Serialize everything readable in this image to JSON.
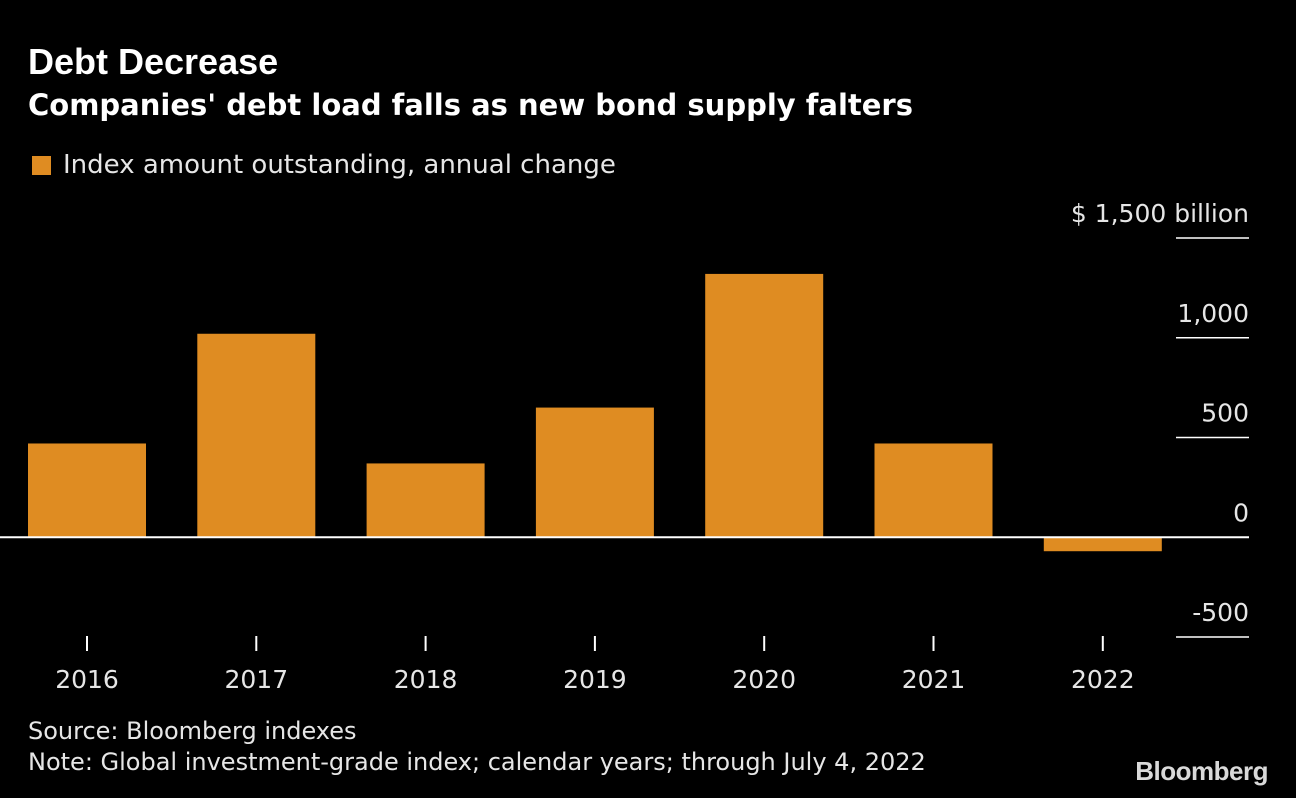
{
  "title": "Debt Decrease",
  "subtitle": "Companies' debt load falls as new bond supply falters",
  "footer": {
    "source": "Source: Bloomberg indexes",
    "note": "Note: Global investment-grade index; calendar years; through July 4, 2022"
  },
  "brand": "Bloomberg",
  "colors": {
    "background": "#000000",
    "bar": "#df8c22",
    "axis": "#ffffff",
    "text": "#e6e6e6"
  },
  "chart_data": {
    "type": "bar",
    "categories": [
      "2016",
      "2017",
      "2018",
      "2019",
      "2020",
      "2021",
      "2022"
    ],
    "series": [
      {
        "name": "Index amount outstanding, annual change",
        "values": [
          470,
          1020,
          370,
          650,
          1320,
          470,
          -70
        ]
      }
    ],
    "ylim": [
      -500,
      1500
    ],
    "yticks": [
      -500,
      0,
      500,
      1000,
      1500
    ],
    "ytick_labels": [
      "-500",
      "0",
      "500",
      "1,000",
      "$ 1,500  billion"
    ],
    "y_axis_position": "right",
    "legend": "top-left",
    "grid": false
  }
}
